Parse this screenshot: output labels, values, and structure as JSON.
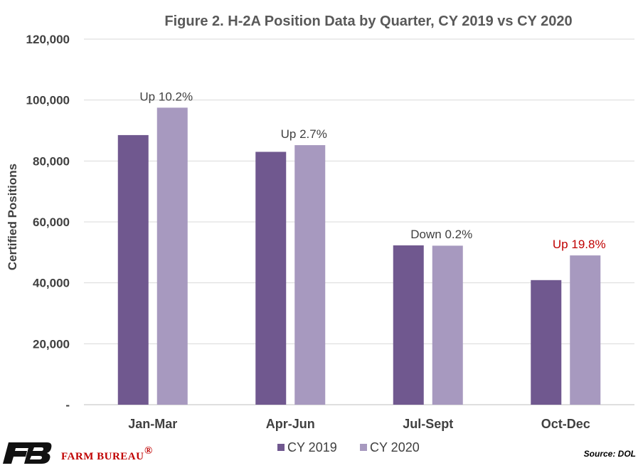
{
  "chart_data": {
    "type": "bar",
    "title": "Figure 2. H-2A Position Data by Quarter, CY 2019 vs CY 2020",
    "ylabel": "Certified Positions",
    "xlabel": "",
    "ylim": [
      0,
      120000
    ],
    "yticks": [
      0,
      20000,
      40000,
      60000,
      80000,
      100000,
      120000
    ],
    "ytick_labels": [
      "-",
      "20,000",
      "40,000",
      "60,000",
      "80,000",
      "100,000",
      "120,000"
    ],
    "categories": [
      "Jan-Mar",
      "Apr-Jun",
      "Jul-Sept",
      "Oct-Dec"
    ],
    "series": [
      {
        "name": "CY 2019",
        "color": "#70588f",
        "values": [
          88500,
          83000,
          52300,
          40900
        ]
      },
      {
        "name": "CY 2020",
        "color": "#a799bf",
        "values": [
          97500,
          85200,
          52200,
          49000
        ]
      }
    ],
    "annotations": [
      {
        "text": "Up 10.2%",
        "color": "#404040"
      },
      {
        "text": "Up 2.7%",
        "color": "#404040"
      },
      {
        "text": "Down 0.2%",
        "color": "#404040"
      },
      {
        "text": "Up 19.8%",
        "color": "#c00000"
      }
    ],
    "grid": true,
    "legend_position": "bottom"
  },
  "footer": {
    "brand_name": "FARM BUREAU",
    "brand_mark": "®",
    "brand_color": "#c00000",
    "logo_color": "#111111",
    "source": "Source: DOL"
  }
}
